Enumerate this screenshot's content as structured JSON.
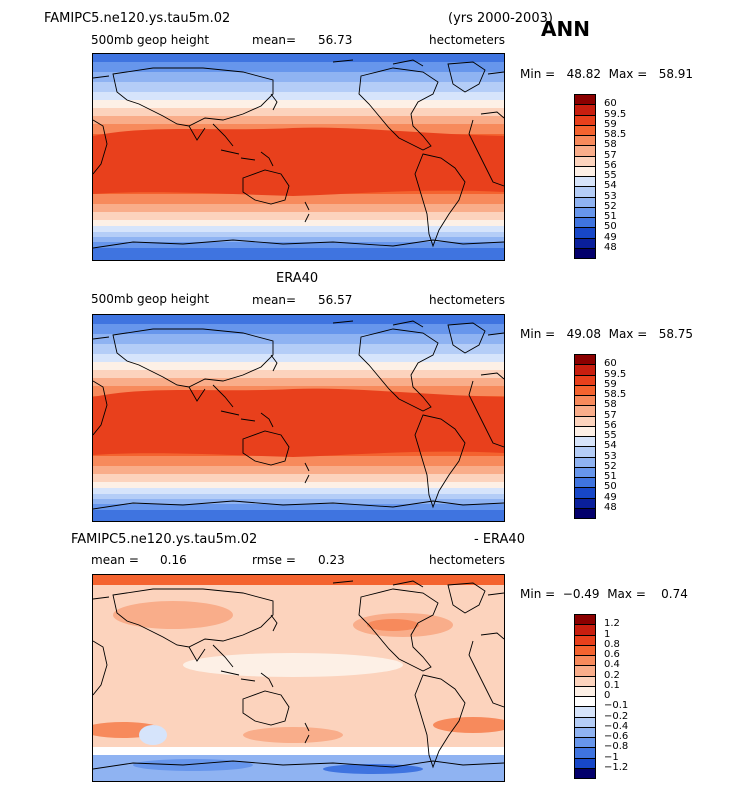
{
  "page": {
    "case_name": "FAMIPC5.ne120.ys.tau5m.02",
    "years": "(yrs 2000-2003)",
    "season": "ANN"
  },
  "panels": [
    {
      "id": "model",
      "title": "",
      "variable": "500mb geop height",
      "stat_label": "mean=",
      "stat_value": "56.73",
      "stat2_label": "",
      "stat2_value": "",
      "units": "hectometers",
      "min_max": "Min =   48.82  Max =   58.91",
      "colorbar_labels": [
        "60",
        "59.5",
        "59",
        "58.5",
        "58",
        "57",
        "56",
        "55",
        "54",
        "53",
        "52",
        "51",
        "50",
        "49",
        "48"
      ]
    },
    {
      "id": "obs",
      "title": "ERA40",
      "variable": "500mb geop height",
      "stat_label": "mean=",
      "stat_value": "56.57",
      "stat2_label": "",
      "stat2_value": "",
      "units": "hectometers",
      "min_max": "Min =   49.08  Max =   58.75",
      "colorbar_labels": [
        "60",
        "59.5",
        "59",
        "58.5",
        "58",
        "57",
        "56",
        "55",
        "54",
        "53",
        "52",
        "51",
        "50",
        "49",
        "48"
      ]
    },
    {
      "id": "diff",
      "title_left": "FAMIPC5.ne120.ys.tau5m.02",
      "title_right": "- ERA40",
      "variable": "",
      "stat_label": "mean =",
      "stat_value": "0.16",
      "stat2_label": "rmse =",
      "stat2_value": "0.23",
      "units": "hectometers",
      "min_max": "Min =  −0.49  Max =    0.74",
      "colorbar_labels": [
        "1.2",
        "1",
        "0.8",
        "0.6",
        "0.4",
        "0.2",
        "0.1",
        "0",
        "−0.1",
        "−0.2",
        "−0.4",
        "−0.6",
        "−0.8",
        "−1",
        "−1.2"
      ]
    }
  ],
  "colors": {
    "abs_scale": [
      "#8b0000",
      "#c81e0f",
      "#e8401c",
      "#f4632f",
      "#f78a5c",
      "#f9ad8a",
      "#fcd3bd",
      "#fdf0e6",
      "#d6e4fb",
      "#b4cdf7",
      "#8fb3f2",
      "#6796ec",
      "#3f74e0",
      "#1747c8",
      "#0a1f9b",
      "#03006b"
    ],
    "diff_scale": [
      "#8b0000",
      "#c81e0f",
      "#e8401c",
      "#f4632f",
      "#f78a5c",
      "#f9ad8a",
      "#fcd3bd",
      "#fdf0e6",
      "#ffffff",
      "#d6e4fb",
      "#b4cdf7",
      "#8fb3f2",
      "#6796ec",
      "#3f74e0",
      "#1747c8",
      "#03006b"
    ],
    "coastline": "#000000"
  },
  "chart_data": [
    {
      "type": "heatmap",
      "title": "FAMIPC5.ne120.ys.tau5m.02",
      "subtitle": "500mb geop height",
      "units": "hectometers",
      "mean": 56.73,
      "min": 48.82,
      "max": 58.91,
      "contour_levels": [
        48,
        49,
        50,
        51,
        52,
        53,
        54,
        55,
        56,
        57,
        58,
        58.5,
        59,
        59.5,
        60
      ]
    },
    {
      "type": "heatmap",
      "title": "ERA40",
      "subtitle": "500mb geop height",
      "units": "hectometers",
      "mean": 56.57,
      "min": 49.08,
      "max": 58.75,
      "contour_levels": [
        48,
        49,
        50,
        51,
        52,
        53,
        54,
        55,
        56,
        57,
        58,
        58.5,
        59,
        59.5,
        60
      ]
    },
    {
      "type": "heatmap",
      "title": "FAMIPC5.ne120.ys.tau5m.02 - ERA40",
      "units": "hectometers",
      "mean": 0.16,
      "rmse": 0.23,
      "min": -0.49,
      "max": 0.74,
      "contour_levels": [
        -1.2,
        -1,
        -0.8,
        -0.6,
        -0.4,
        -0.2,
        -0.1,
        0,
        0.1,
        0.2,
        0.4,
        0.6,
        0.8,
        1,
        1.2
      ]
    }
  ]
}
